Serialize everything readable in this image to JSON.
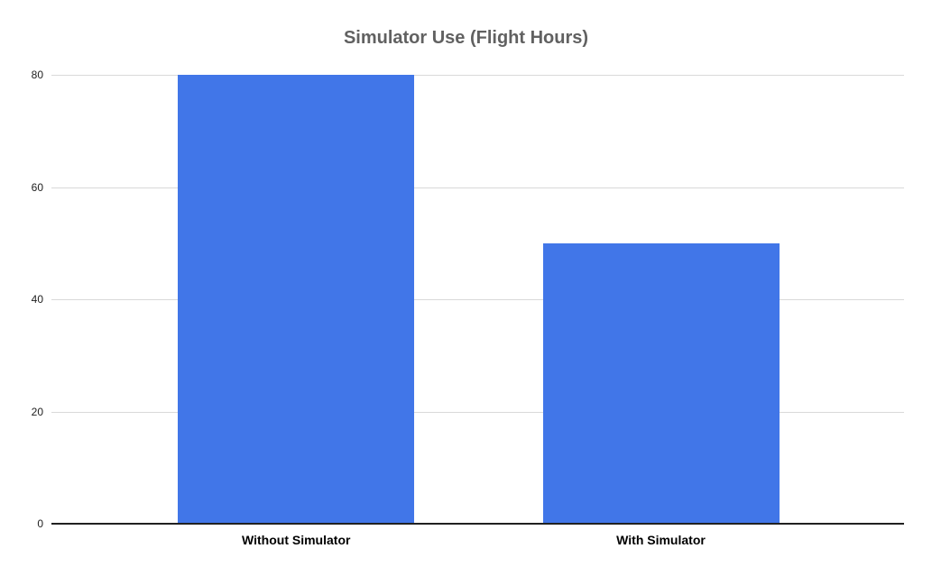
{
  "chart_data": {
    "type": "bar",
    "title": "Simulator Use (Flight Hours)",
    "categories": [
      "Without Simulator",
      "With Simulator"
    ],
    "values": [
      80,
      50
    ],
    "xlabel": "",
    "ylabel": "",
    "ylim": [
      0,
      80
    ],
    "yticks": [
      0,
      20,
      40,
      60,
      80
    ],
    "grid": true,
    "legend": "none",
    "colors": {
      "bar": "#4176E8",
      "gridline": "#D9D9D9",
      "baseline": "#212121",
      "title": "#616161",
      "tick_label": "#212121",
      "category_label": "#000000",
      "background": "#FFFFFF"
    }
  }
}
